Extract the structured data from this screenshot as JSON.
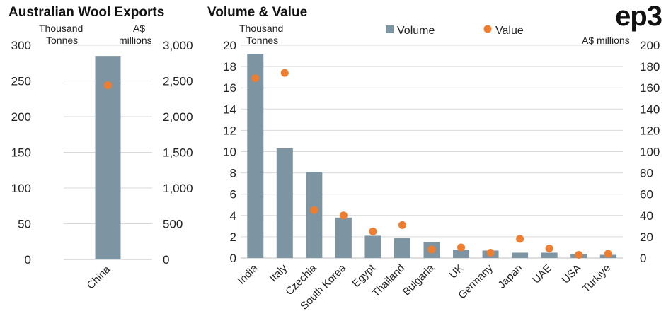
{
  "brand": "ep3",
  "colors": {
    "volume": "#7d95a2",
    "value": "#ee7d30",
    "grid": "#d9d9d9"
  },
  "chart_data": [
    {
      "type": "bar+scatter",
      "title": "Australian Wool Exports",
      "left_axis_label": [
        "Thousand",
        "Tonnes"
      ],
      "right_axis_label": [
        "A$",
        "millions"
      ],
      "left_ylim": [
        0,
        300
      ],
      "left_ticks": [
        "300",
        "250",
        "200",
        "150",
        "100",
        "50",
        "0"
      ],
      "right_ylim": [
        0,
        3000
      ],
      "right_ticks": [
        "3,000",
        "2,500",
        "2,000",
        "1,500",
        "1,000",
        "500",
        "0"
      ],
      "grid": true,
      "categories": [
        "China"
      ],
      "series": [
        {
          "name": "Volume",
          "kind": "bar",
          "axis": "left",
          "values": [
            285
          ]
        },
        {
          "name": "Value",
          "kind": "point",
          "axis": "right",
          "values": [
            2440
          ]
        }
      ]
    },
    {
      "type": "bar+scatter",
      "title": "Volume & Value",
      "left_axis_label": [
        "Thousand",
        "Tonnes"
      ],
      "right_axis_label": [
        "A$ millions"
      ],
      "legend": [
        "Volume",
        "Value"
      ],
      "legend_position": "top-center",
      "left_ylim": [
        0,
        20
      ],
      "left_ticks": [
        "20",
        "18",
        "16",
        "14",
        "12",
        "10",
        "8",
        "6",
        "4",
        "2",
        "0"
      ],
      "right_ylim": [
        0,
        200
      ],
      "right_ticks": [
        "200",
        "180",
        "160",
        "140",
        "120",
        "100",
        "80",
        "60",
        "40",
        "20",
        "0"
      ],
      "grid": true,
      "categories": [
        "India",
        "Italy",
        "Czechia",
        "South Korea",
        "Egypt",
        "Thailand",
        "Bulgaria",
        "UK",
        "Germany",
        "Japan",
        "UAE",
        "USA",
        "Turkiye"
      ],
      "series": [
        {
          "name": "Volume",
          "kind": "bar",
          "axis": "left",
          "values": [
            19.2,
            10.3,
            8.1,
            3.8,
            2.1,
            1.9,
            1.5,
            0.8,
            0.7,
            0.5,
            0.5,
            0.4,
            0.3
          ]
        },
        {
          "name": "Value",
          "kind": "point",
          "axis": "right",
          "values": [
            169,
            174,
            45,
            40,
            25,
            31,
            8,
            10,
            5,
            18,
            9,
            3,
            4
          ]
        }
      ]
    }
  ]
}
